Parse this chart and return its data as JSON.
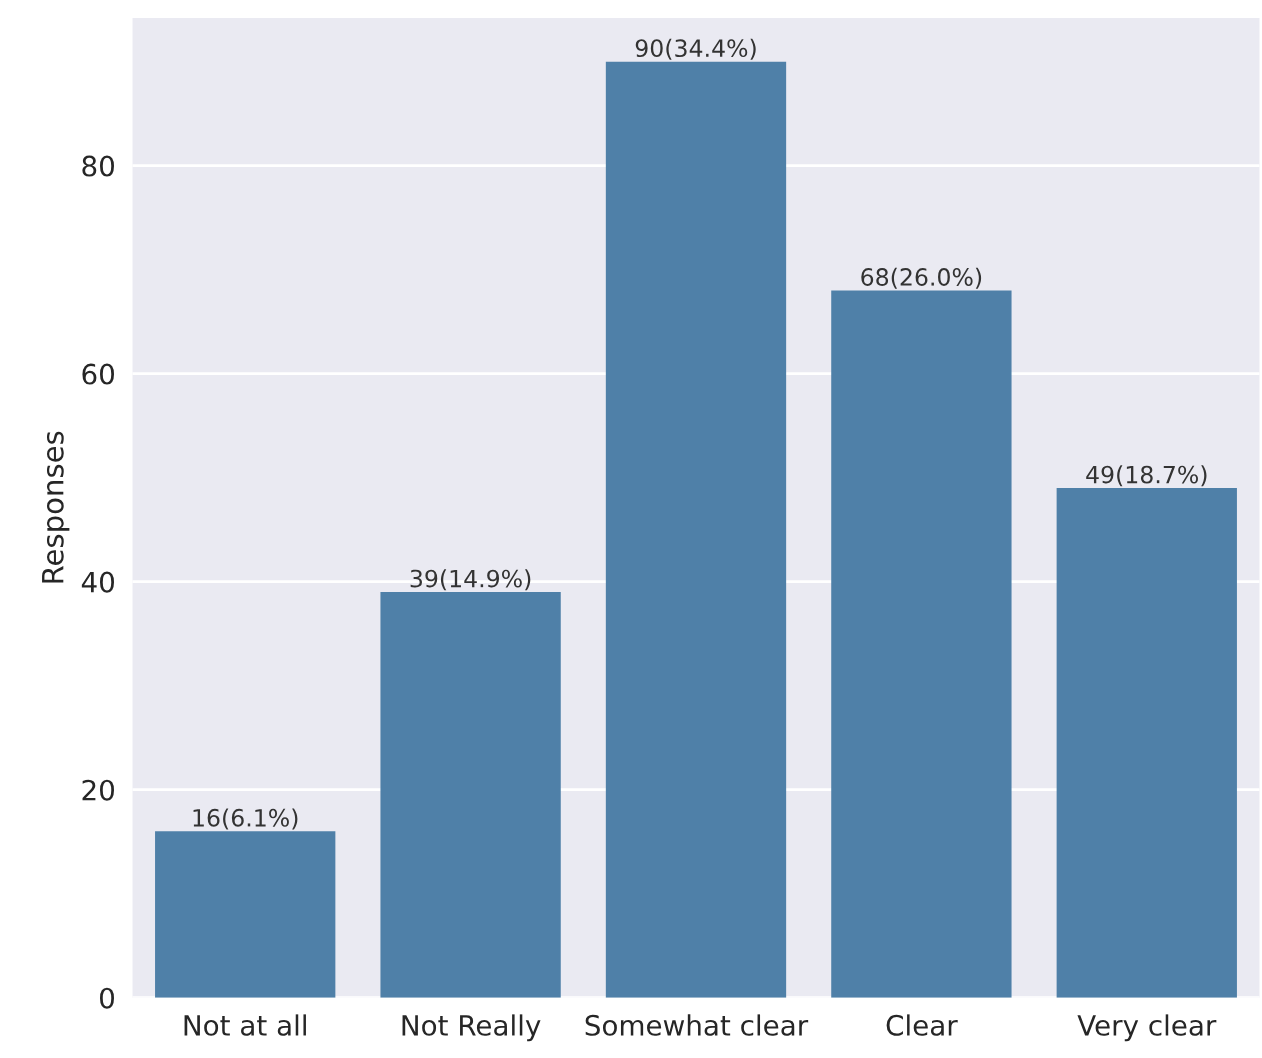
{
  "chart_data": {
    "type": "bar",
    "ylabel": "Responses",
    "categories": [
      "Not at all",
      "Not Really",
      "Somewhat clear",
      "Clear",
      "Very clear"
    ],
    "values": [
      16,
      39,
      90,
      68,
      49
    ],
    "value_labels": [
      "16(6.1%)",
      "39(14.9%)",
      "90(34.4%)",
      "68(26.0%)",
      "49(18.7%)"
    ],
    "color": "#4f80a8",
    "ylim": [
      0,
      94.2
    ],
    "yticks": [
      0,
      20,
      40,
      60,
      80
    ],
    "grid": "y"
  }
}
